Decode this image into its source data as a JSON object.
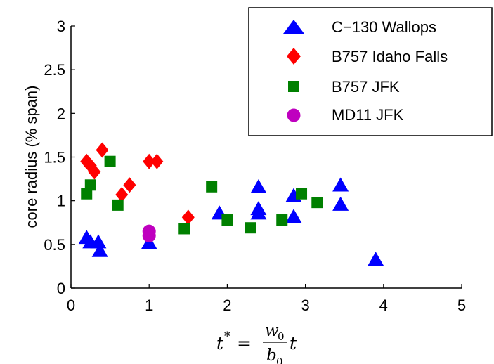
{
  "chart_data": {
    "type": "scatter",
    "ylabel": "core radius (% span)",
    "xlabel": {
      "lhs": "t",
      "lhs_sup": "*",
      "equals": "=",
      "numerator": "w",
      "numerator_sub": "0",
      "denominator": "b",
      "denominator_sub": "0",
      "trailing": "t"
    },
    "xlim": [
      0,
      5
    ],
    "ylim": [
      0,
      3
    ],
    "x_ticks": [
      0,
      1,
      2,
      3,
      4,
      5
    ],
    "y_ticks": [
      0,
      0.5,
      1,
      1.5,
      2,
      2.5,
      3
    ],
    "x_tick_labels": [
      "0",
      "1",
      "2",
      "3",
      "4",
      "5"
    ],
    "y_tick_labels": [
      "0",
      "0.5",
      "1",
      "1.5",
      "2",
      "2.5",
      "3"
    ],
    "grid": false,
    "legend_position": "top-right",
    "series": [
      {
        "name": "C−130 Wallops",
        "marker": "triangle",
        "color": "#0000ff",
        "points": [
          [
            0.2,
            0.57
          ],
          [
            0.25,
            0.52
          ],
          [
            0.35,
            0.52
          ],
          [
            0.37,
            0.42
          ],
          [
            1.0,
            0.51
          ],
          [
            1.9,
            0.85
          ],
          [
            2.4,
            1.15
          ],
          [
            2.4,
            0.9
          ],
          [
            2.4,
            0.85
          ],
          [
            2.85,
            1.05
          ],
          [
            2.85,
            0.81
          ],
          [
            3.45,
            1.17
          ],
          [
            3.45,
            0.95
          ],
          [
            3.9,
            0.32
          ]
        ]
      },
      {
        "name": "B757 Idaho Falls",
        "marker": "diamond",
        "color": "#ff0000",
        "points": [
          [
            0.2,
            1.45
          ],
          [
            0.25,
            1.4
          ],
          [
            0.3,
            1.33
          ],
          [
            0.4,
            1.58
          ],
          [
            0.65,
            1.07
          ],
          [
            0.75,
            1.18
          ],
          [
            1.0,
            1.45
          ],
          [
            1.1,
            1.45
          ],
          [
            1.5,
            0.81
          ]
        ]
      },
      {
        "name": "B757 JFK",
        "marker": "square",
        "color": "#008000",
        "points": [
          [
            0.2,
            1.08
          ],
          [
            0.25,
            1.18
          ],
          [
            0.5,
            1.45
          ],
          [
            0.6,
            0.95
          ],
          [
            1.45,
            0.68
          ],
          [
            1.8,
            1.16
          ],
          [
            2.0,
            0.78
          ],
          [
            2.3,
            0.69
          ],
          [
            2.7,
            0.78
          ],
          [
            2.95,
            1.08
          ],
          [
            3.15,
            0.98
          ]
        ]
      },
      {
        "name": "MD11 JFK",
        "marker": "circle",
        "color": "#bf00bf",
        "points": [
          [
            1.0,
            0.65
          ],
          [
            1.0,
            0.6
          ]
        ]
      }
    ]
  }
}
